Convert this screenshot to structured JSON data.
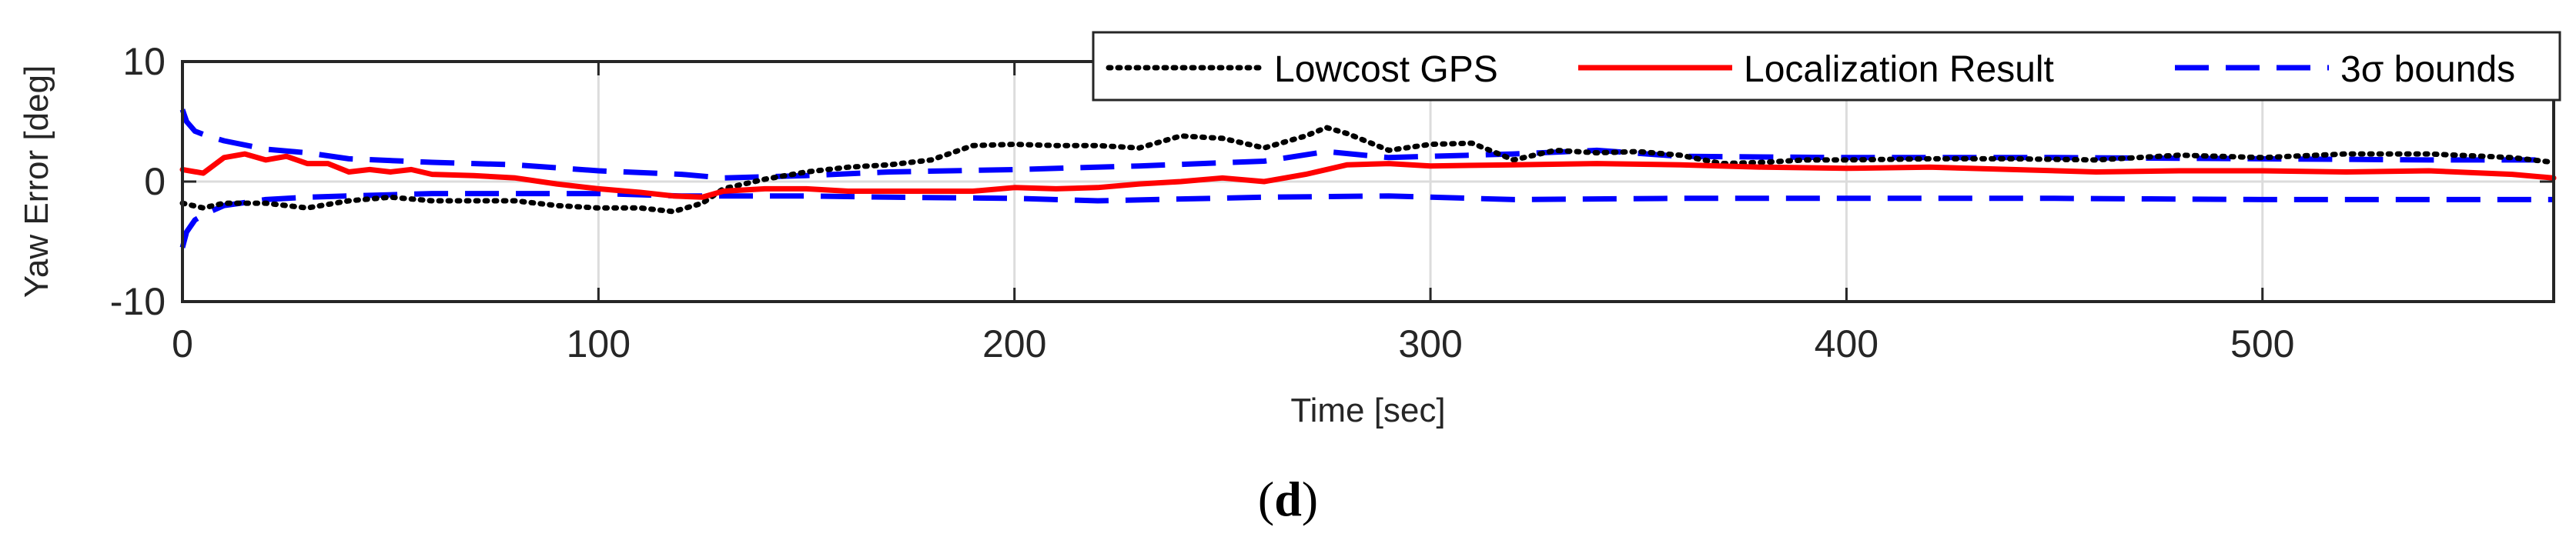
{
  "chart_data": {
    "type": "line",
    "title": "",
    "xlabel": "Time [sec]",
    "ylabel": "Yaw Error [deg]",
    "xlim": [
      0,
      570
    ],
    "ylim": [
      -10,
      10
    ],
    "xticks": [
      0,
      100,
      200,
      300,
      400,
      500
    ],
    "yticks": [
      10,
      0,
      -10
    ],
    "xtick_labels": [
      "0",
      "100",
      "200",
      "300",
      "400",
      "500"
    ],
    "ytick_labels": [
      "10",
      "0",
      "-10"
    ],
    "grid": true,
    "legend_position": "top-right",
    "series": [
      {
        "name": "Lowcost GPS",
        "style": "dotted",
        "color": "#000000",
        "x": [
          0,
          5,
          10,
          20,
          30,
          40,
          50,
          60,
          70,
          80,
          90,
          100,
          110,
          118,
          125,
          130,
          140,
          150,
          160,
          170,
          180,
          190,
          200,
          210,
          220,
          230,
          240,
          250,
          260,
          270,
          275,
          280,
          290,
          300,
          310,
          320,
          330,
          340,
          350,
          360,
          370,
          380,
          390,
          400,
          420,
          440,
          460,
          480,
          500,
          520,
          540,
          560,
          570
        ],
        "y": [
          -1.8,
          -2.2,
          -1.8,
          -1.8,
          -2.2,
          -1.6,
          -1.3,
          -1.6,
          -1.6,
          -1.6,
          -2.0,
          -2.2,
          -2.2,
          -2.5,
          -1.8,
          -0.6,
          0.2,
          0.8,
          1.2,
          1.4,
          1.8,
          3.0,
          3.1,
          3.0,
          3.0,
          2.8,
          3.8,
          3.6,
          2.8,
          3.8,
          4.5,
          4.0,
          2.6,
          3.1,
          3.2,
          1.8,
          2.6,
          2.4,
          2.5,
          2.2,
          1.5,
          1.6,
          1.8,
          1.8,
          1.9,
          1.9,
          1.8,
          2.2,
          2.0,
          2.3,
          2.3,
          2.0,
          1.6
        ]
      },
      {
        "name": "Localization Result",
        "style": "solid",
        "color": "#ff0000",
        "x": [
          0,
          5,
          10,
          15,
          20,
          25,
          30,
          35,
          40,
          45,
          50,
          55,
          60,
          70,
          80,
          90,
          100,
          110,
          118,
          125,
          130,
          140,
          150,
          160,
          170,
          180,
          190,
          200,
          210,
          220,
          230,
          240,
          250,
          260,
          270,
          280,
          290,
          300,
          320,
          340,
          360,
          380,
          400,
          420,
          440,
          460,
          480,
          500,
          520,
          540,
          560,
          570
        ],
        "y": [
          1.0,
          0.7,
          2.0,
          2.3,
          1.8,
          2.1,
          1.5,
          1.5,
          0.8,
          1.0,
          0.8,
          1.0,
          0.6,
          0.5,
          0.3,
          -0.2,
          -0.6,
          -0.9,
          -1.2,
          -1.3,
          -0.8,
          -0.6,
          -0.6,
          -0.8,
          -0.8,
          -0.8,
          -0.8,
          -0.5,
          -0.6,
          -0.5,
          -0.2,
          0.0,
          0.3,
          0.0,
          0.6,
          1.4,
          1.5,
          1.3,
          1.4,
          1.5,
          1.4,
          1.2,
          1.1,
          1.2,
          1.0,
          0.8,
          0.9,
          0.9,
          0.8,
          0.9,
          0.6,
          0.3
        ]
      },
      {
        "name": "3σ bounds (upper)",
        "legend_label": "3σ bounds",
        "style": "dashed",
        "color": "#0000ff",
        "x": [
          0,
          1,
          3,
          6,
          10,
          20,
          30,
          40,
          60,
          80,
          100,
          120,
          130,
          150,
          170,
          200,
          230,
          260,
          275,
          290,
          300,
          320,
          340,
          360,
          400,
          450,
          500,
          540,
          570
        ],
        "y": [
          6.0,
          5.0,
          4.2,
          3.8,
          3.4,
          2.7,
          2.4,
          1.9,
          1.6,
          1.4,
          0.9,
          0.6,
          0.3,
          0.5,
          0.8,
          1.0,
          1.3,
          1.7,
          2.5,
          2.0,
          2.1,
          2.3,
          2.6,
          2.1,
          2.0,
          2.0,
          1.9,
          1.8,
          1.8
        ]
      },
      {
        "name": "3σ bounds (lower)",
        "style": "dashed",
        "color": "#0000ff",
        "x": [
          0,
          1,
          3,
          6,
          10,
          20,
          30,
          40,
          60,
          80,
          100,
          120,
          130,
          150,
          170,
          200,
          220,
          260,
          290,
          300,
          320,
          360,
          400,
          450,
          500,
          540,
          570
        ],
        "y": [
          -5.5,
          -4.2,
          -3.2,
          -2.6,
          -2.0,
          -1.5,
          -1.3,
          -1.2,
          -1.0,
          -1.0,
          -1.0,
          -1.2,
          -1.2,
          -1.2,
          -1.3,
          -1.4,
          -1.6,
          -1.3,
          -1.2,
          -1.3,
          -1.5,
          -1.4,
          -1.4,
          -1.4,
          -1.5,
          -1.5,
          -1.5
        ]
      }
    ]
  },
  "legend": {
    "items": [
      {
        "label": "Lowcost GPS"
      },
      {
        "label": "Localization Result"
      },
      {
        "label": "3σ bounds"
      }
    ]
  },
  "caption": {
    "open": "(",
    "letter": "d",
    "close": ")"
  }
}
